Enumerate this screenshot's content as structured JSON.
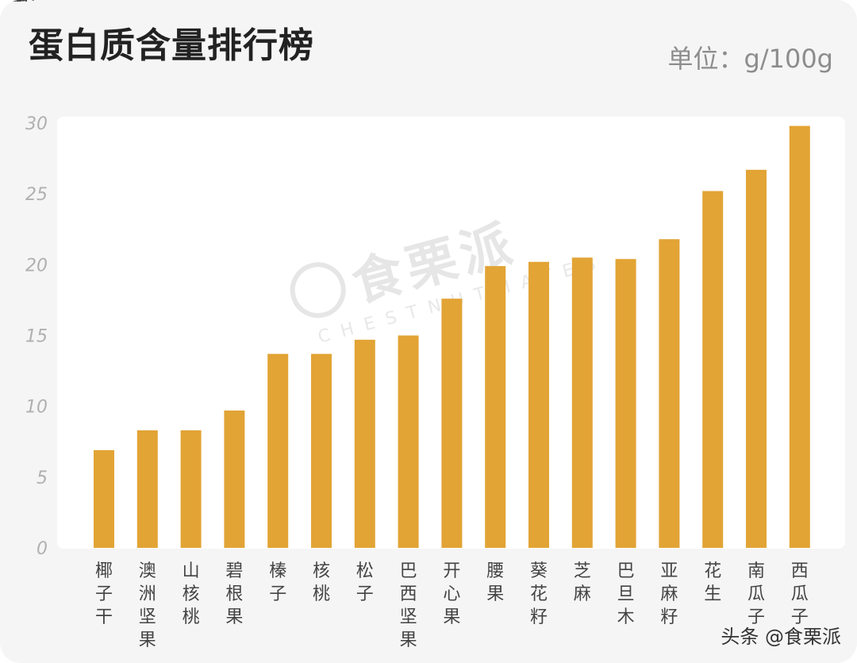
{
  "header": {
    "title": "蛋白质含量排行榜",
    "unit_label": "单位：g/100g"
  },
  "watermark": {
    "main": "食栗派",
    "sub": "CHESTNUTMATES"
  },
  "footer": {
    "credit": "头条 @食栗派"
  },
  "colors": {
    "bar": "#E2A435",
    "tick_text": "#b0b0b0",
    "label_text": "#444444",
    "plot_background": "#ffffff",
    "card_background": "#f5f5f5"
  },
  "chart_data": {
    "type": "bar",
    "title": "蛋白质含量排行榜",
    "ylim": [
      0,
      30
    ],
    "yticks": [
      0,
      5,
      10,
      15,
      20,
      25,
      30
    ],
    "grid": false,
    "categories": [
      "椰子干",
      "澳洲坚果",
      "山核桃",
      "碧根果",
      "榛子",
      "核桃",
      "松子",
      "巴西坚果",
      "开心果",
      "腰果",
      "葵花籽",
      "芝麻",
      "巴旦木",
      "亚麻籽",
      "花生",
      "南瓜子",
      "西瓜子"
    ],
    "values": [
      6.9,
      8.3,
      8.3,
      9.7,
      13.7,
      13.7,
      14.7,
      15.0,
      17.6,
      19.9,
      20.2,
      20.5,
      20.4,
      21.8,
      25.2,
      26.7,
      29.8
    ]
  }
}
